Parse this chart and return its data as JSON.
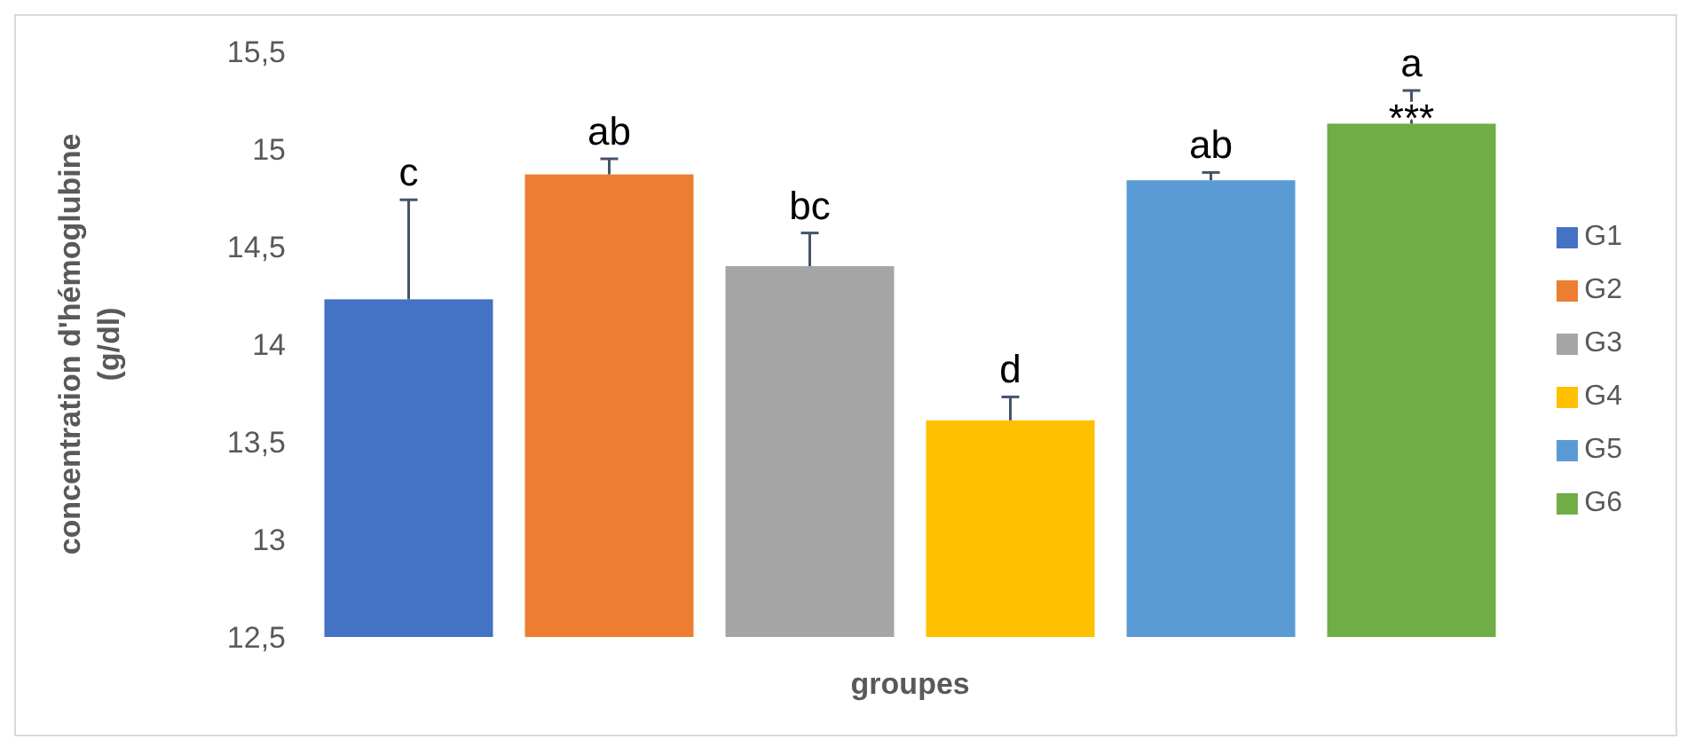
{
  "chart_data": {
    "type": "bar",
    "xlabel": "groupes",
    "ylabel": "concentration d'hémoglubine (g/dl)",
    "categories": [
      null
    ],
    "series": [
      {
        "name": "G1",
        "color": "#4472c4",
        "values": [
          14.23
        ],
        "errors": [
          [
            14.23,
            14.74
          ]
        ],
        "value_labels": [
          "c"
        ]
      },
      {
        "name": "G2",
        "color": "#ed7d31",
        "values": [
          14.87
        ],
        "errors": [
          [
            14.87,
            14.95
          ]
        ],
        "value_labels": [
          "ab"
        ]
      },
      {
        "name": "G3",
        "color": "#a5a5a5",
        "values": [
          14.4
        ],
        "errors": [
          [
            14.4,
            14.57
          ]
        ],
        "value_labels": [
          "bc"
        ]
      },
      {
        "name": "G4",
        "color": "#ffc000",
        "values": [
          13.61
        ],
        "errors": [
          [
            13.61,
            13.73
          ]
        ],
        "value_labels": [
          "d"
        ]
      },
      {
        "name": "G5",
        "color": "#5b9bd5",
        "values": [
          14.84
        ],
        "errors": [
          [
            14.84,
            14.88
          ]
        ],
        "value_labels": [
          "ab"
        ]
      },
      {
        "name": "G6",
        "color": "#70ad47",
        "values": [
          15.13
        ],
        "errors": [
          [
            15.13,
            15.3
          ]
        ],
        "value_labels": [
          "a"
        ]
      }
    ],
    "annotations": [
      {
        "text": "***",
        "y": 15.22
      }
    ],
    "ylim": [
      12.5,
      15.5
    ],
    "yticks": [
      {
        "value": 12.5,
        "label": "12,5"
      },
      13,
      {
        "value": 13.5,
        "label": "13,5"
      },
      14,
      {
        "value": 14.5,
        "label": "14,5"
      },
      15,
      {
        "value": 15.5,
        "label": "15,5"
      }
    ],
    "grid": false,
    "legend": "right"
  }
}
